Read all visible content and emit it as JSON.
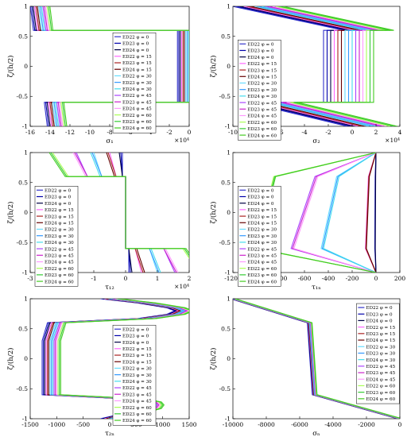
{
  "legend_labels": [
    "ED22 φ = 0",
    "ED23 φ = 0",
    "ED24 φ = 0",
    "ED22 φ = 15",
    "ED23 φ = 15",
    "ED24 φ = 15",
    "ED22 φ = 30",
    "ED23 φ = 30",
    "ED24 φ = 30",
    "ED22 φ = 45",
    "ED23 φ = 45",
    "ED24 φ = 45",
    "ED22 φ = 60",
    "ED23 φ = 60",
    "ED24 φ = 60"
  ],
  "series_colors": [
    "#3333cc",
    "#0000aa",
    "#000044",
    "#ff66ff",
    "#aa2222",
    "#660000",
    "#66ddff",
    "#3399ff",
    "#44ddee",
    "#aa44ff",
    "#cc22cc",
    "#ff99ff",
    "#aaff55",
    "#33cc33",
    "#44cc22"
  ],
  "chart_data": [
    {
      "type": "line",
      "xlabel": "σ₁",
      "ylabel": "ζ/(h/2)",
      "exponent": "×10⁴",
      "xlim": [
        -16,
        0
      ],
      "ylim": [
        -1,
        1
      ],
      "xticks": [
        -16,
        -14,
        -12,
        -10,
        -8,
        -6,
        -4,
        -2,
        0
      ],
      "yticks": [
        -1,
        -0.5,
        0,
        0.5,
        1
      ],
      "legend_pos": "center",
      "spread": [
        0.14,
        0.05
      ],
      "base": [
        [
          -15.0,
          1.0
        ],
        [
          -14.7,
          0.6
        ],
        [
          -0.2,
          0.6
        ],
        [
          -0.2,
          -0.6
        ],
        [
          -13.6,
          -0.6
        ],
        [
          -13.3,
          -1.0
        ]
      ]
    },
    {
      "type": "line",
      "xlabel": "σ₂",
      "ylabel": "ζ/(h/2)",
      "exponent": "×10⁴",
      "xlim": [
        -10,
        4
      ],
      "ylim": [
        -1,
        1
      ],
      "xticks": [
        -10,
        -8,
        -6,
        -4,
        -2,
        0,
        2,
        4
      ],
      "yticks": [
        -1,
        -0.5,
        0,
        0.5,
        1
      ],
      "legend_pos": "left",
      "spread": [
        0.3,
        0
      ],
      "base": [
        [
          -7.9,
          1.0
        ],
        [
          1.4,
          0.6
        ],
        [
          -0.3,
          0.6
        ],
        [
          -0.3,
          -0.6
        ],
        [
          -6.7,
          -0.6
        ],
        [
          1.7,
          -1.0
        ]
      ]
    },
    {
      "type": "line",
      "xlabel": "τ₁₂",
      "ylabel": "ζ/(h/2)",
      "exponent": "×10⁴",
      "xlim": [
        -3,
        2
      ],
      "ylim": [
        -1,
        1
      ],
      "xticks": [
        -3,
        -2,
        -1,
        0,
        1,
        2
      ],
      "yticks": [
        -1,
        -0.5,
        0,
        0.5,
        1
      ],
      "legend_pos": "left",
      "series": [
        {
          "points": [
            [
              -0.1,
              1.0
            ],
            [
              -0.1,
              0.6
            ],
            [
              0,
              0.6
            ],
            [
              0,
              -0.6
            ],
            [
              0.1,
              -0.6
            ],
            [
              0.1,
              -1.0
            ]
          ]
        },
        {
          "points": [
            [
              -0.15,
              1.0
            ],
            [
              -0.1,
              0.6
            ],
            [
              0,
              0.6
            ],
            [
              0,
              -0.6
            ],
            [
              0.1,
              -0.6
            ],
            [
              0.15,
              -1.0
            ]
          ]
        },
        {
          "points": [
            [
              -0.2,
              1.0
            ],
            [
              -0.1,
              0.6
            ],
            [
              0,
              0.6
            ],
            [
              0,
              -0.6
            ],
            [
              0.1,
              -0.6
            ],
            [
              0.2,
              -1.0
            ]
          ]
        },
        {
          "points": [
            [
              -0.5,
              1.0
            ],
            [
              -0.3,
              0.6
            ],
            [
              0,
              0.6
            ],
            [
              0,
              -0.6
            ],
            [
              0.3,
              -0.6
            ],
            [
              0.5,
              -1.0
            ]
          ]
        },
        {
          "points": [
            [
              -0.55,
              1.0
            ],
            [
              -0.3,
              0.6
            ],
            [
              0,
              0.6
            ],
            [
              0,
              -0.6
            ],
            [
              0.3,
              -0.6
            ],
            [
              0.55,
              -1.0
            ]
          ]
        },
        {
          "points": [
            [
              -0.6,
              1.0
            ],
            [
              -0.35,
              0.6
            ],
            [
              0,
              0.6
            ],
            [
              0,
              -0.6
            ],
            [
              0.35,
              -0.6
            ],
            [
              0.6,
              -1.0
            ]
          ]
        },
        {
          "points": [
            [
              -1.0,
              1.0
            ],
            [
              -0.75,
              0.6
            ],
            [
              0,
              0.6
            ],
            [
              0,
              -0.6
            ],
            [
              0.75,
              -0.6
            ],
            [
              1.0,
              -1.0
            ]
          ]
        },
        {
          "points": [
            [
              -1.05,
              1.0
            ],
            [
              -0.75,
              0.6
            ],
            [
              0,
              0.6
            ],
            [
              0,
              -0.6
            ],
            [
              0.75,
              -0.6
            ],
            [
              1.05,
              -1.0
            ]
          ]
        },
        {
          "points": [
            [
              -1.1,
              1.0
            ],
            [
              -0.8,
              0.6
            ],
            [
              0,
              0.6
            ],
            [
              0,
              -0.6
            ],
            [
              0.8,
              -0.6
            ],
            [
              1.1,
              -1.0
            ]
          ]
        },
        {
          "points": [
            [
              -1.55,
              1.0
            ],
            [
              -1.2,
              0.6
            ],
            [
              0,
              0.6
            ],
            [
              0,
              -0.6
            ],
            [
              1.2,
              -0.6
            ],
            [
              1.55,
              -1.0
            ]
          ]
        },
        {
          "points": [
            [
              -1.6,
              1.0
            ],
            [
              -1.2,
              0.6
            ],
            [
              0,
              0.6
            ],
            [
              0,
              -0.6
            ],
            [
              1.2,
              -0.6
            ],
            [
              1.6,
              -1.0
            ]
          ]
        },
        {
          "points": [
            [
              -1.65,
              1.0
            ],
            [
              -1.25,
              0.6
            ],
            [
              0,
              0.6
            ],
            [
              0,
              -0.6
            ],
            [
              1.25,
              -0.6
            ],
            [
              1.65,
              -1.0
            ]
          ]
        },
        {
          "points": [
            [
              -2.3,
              1.0
            ],
            [
              -1.8,
              0.6
            ],
            [
              0,
              0.6
            ],
            [
              0,
              -0.6
            ],
            [
              1.8,
              -0.6
            ],
            [
              2.3,
              -1.0
            ]
          ]
        },
        {
          "points": [
            [
              -2.35,
              1.0
            ],
            [
              -1.85,
              0.6
            ],
            [
              0,
              0.6
            ],
            [
              0,
              -0.6
            ],
            [
              1.85,
              -0.6
            ],
            [
              2.35,
              -1.0
            ]
          ]
        },
        {
          "points": [
            [
              -2.4,
              1.0
            ],
            [
              -1.9,
              0.6
            ],
            [
              0,
              0.6
            ],
            [
              0,
              -0.6
            ],
            [
              1.9,
              -0.6
            ],
            [
              2.4,
              -1.0
            ]
          ]
        }
      ]
    },
    {
      "type": "line",
      "xlabel": "τ₁ₙ",
      "ylabel": "ζ/(h/2)",
      "exponent": "",
      "xlim": [
        -1200,
        200
      ],
      "ylim": [
        -1,
        1
      ],
      "xticks": [
        -1200,
        -1000,
        -800,
        -600,
        -400,
        -200,
        0,
        200
      ],
      "yticks": [
        -1,
        -0.5,
        0,
        0.5,
        1
      ],
      "legend_pos": "left",
      "groups": [
        {
          "pts": [
            [
              0,
              1
            ],
            [
              -5,
              0.6
            ],
            [
              -8,
              -0.6
            ],
            [
              0,
              -1
            ]
          ],
          "jitter": 2
        },
        {
          "pts": [
            [
              0,
              1
            ],
            [
              -60,
              0.6
            ],
            [
              -85,
              -0.6
            ],
            [
              0,
              -1
            ]
          ],
          "jitter": 4
        },
        {
          "pts": [
            [
              0,
              1
            ],
            [
              -320,
              0.6
            ],
            [
              -450,
              -0.6
            ],
            [
              0,
              -1
            ]
          ],
          "jitter": 10
        },
        {
          "pts": [
            [
              0,
              1
            ],
            [
              -500,
              0.6
            ],
            [
              -700,
              -0.6
            ],
            [
              0,
              -1
            ]
          ],
          "jitter": 12
        },
        {
          "pts": [
            [
              0,
              1
            ],
            [
              -850,
              0.6
            ],
            [
              -1000,
              -0.6
            ],
            [
              0,
              -1
            ]
          ],
          "jitter": 8
        }
      ]
    },
    {
      "type": "line",
      "xlabel": "τ₂ₙ",
      "ylabel": "ζ/(h/2)",
      "exponent": "",
      "xlim": [
        -1500,
        1500
      ],
      "ylim": [
        -1,
        1
      ],
      "xticks": [
        -1500,
        -1000,
        -500,
        0,
        500,
        1000,
        1500
      ],
      "yticks": [
        -1,
        -0.5,
        0,
        0.5,
        1
      ],
      "legend_pos": "center",
      "spread": [
        25,
        0
      ],
      "base": [
        [
          0,
          1.0
        ],
        [
          700,
          0.93
        ],
        [
          1250,
          0.85
        ],
        [
          1400,
          0.8
        ],
        [
          1250,
          0.74
        ],
        [
          700,
          0.67
        ],
        [
          -1000,
          0.6
        ],
        [
          -1100,
          0.3
        ],
        [
          -1100,
          -0.3
        ],
        [
          -1100,
          -0.6
        ],
        [
          500,
          -0.67
        ],
        [
          800,
          -0.72
        ],
        [
          850,
          -0.77
        ],
        [
          800,
          -0.83
        ],
        [
          500,
          -0.9
        ],
        [
          0,
          -1.0
        ]
      ]
    },
    {
      "type": "line",
      "xlabel": "σₙ",
      "ylabel": "ζ/(h/2)",
      "exponent": "",
      "xlim": [
        -10000,
        0
      ],
      "ylim": [
        -1,
        1
      ],
      "xticks": [
        -10000,
        -8000,
        -6000,
        -4000,
        -2000,
        0
      ],
      "yticks": [
        -1,
        -0.5,
        0,
        0.5,
        1
      ],
      "legend_pos": "right",
      "spread": [
        20,
        0
      ],
      "base": [
        [
          -10000,
          1.0
        ],
        [
          -5400,
          0.6
        ],
        [
          -5100,
          -0.6
        ],
        [
          0,
          -1.0
        ]
      ]
    }
  ]
}
